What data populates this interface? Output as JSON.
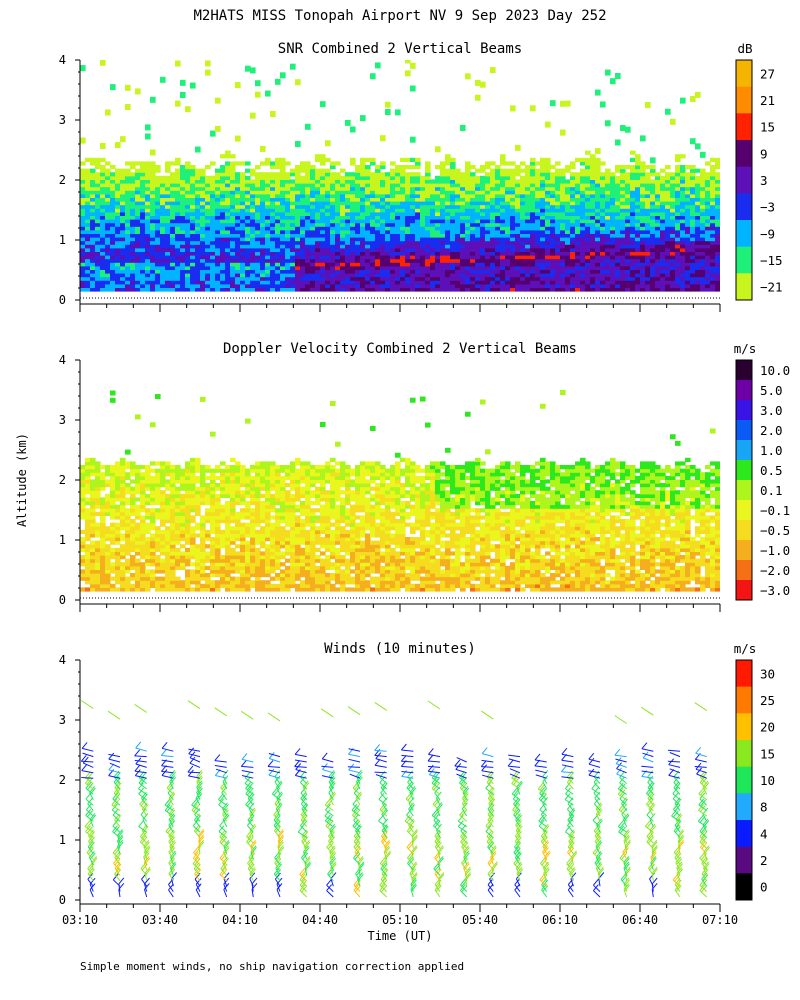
{
  "figure": {
    "title": "M2HATS MISS Tonopah Airport NV   9 Sep 2023 Day 252",
    "ylabel": "Altitude (km)",
    "xlabel": "Time (UT)",
    "footnote": "Simple moment winds, no ship navigation correction applied",
    "time_ticks": [
      "03:10",
      "03:40",
      "04:10",
      "04:40",
      "05:10",
      "05:40",
      "06:10",
      "06:40",
      "07:10"
    ]
  },
  "chart_data": [
    {
      "type": "heatmap",
      "id": "snr",
      "title": "SNR Combined 2 Vertical Beams",
      "xlabel": "Time (UT)",
      "ylabel": "Altitude (km)",
      "xlim_hours": [
        3.1667,
        7.1667
      ],
      "ylim": [
        0,
        4
      ],
      "yticks": [
        0,
        1,
        2,
        3,
        4
      ],
      "colorbar": {
        "unit": "dB",
        "labels": [
          "27",
          "21",
          "15",
          "9",
          "3",
          "−3",
          "−9",
          "−15",
          "−21"
        ],
        "colors": [
          "#f5b400",
          "#ff8c00",
          "#ff2200",
          "#55006e",
          "#5d0fb8",
          "#1a2cf0",
          "#00b4ff",
          "#1ef07a",
          "#c8f51e"
        ]
      },
      "features": {
        "signal_top_km": 2.3,
        "signal_bottom_km": 0.15,
        "strong_layer_start_km": 0.5,
        "strong_layer_end_km": 0.8,
        "strong_layer_onset": "04:40"
      }
    },
    {
      "type": "heatmap",
      "id": "doppler",
      "title": "Doppler Velocity Combined 2 Vertical Beams",
      "xlabel": "Time (UT)",
      "ylabel": "Altitude (km)",
      "xlim_hours": [
        3.1667,
        7.1667
      ],
      "ylim": [
        0,
        4
      ],
      "yticks": [
        0,
        1,
        2,
        3,
        4
      ],
      "colorbar": {
        "unit": "m/s",
        "labels": [
          "10.0",
          "5.0",
          "3.0",
          "2.0",
          "1.0",
          "0.5",
          "0.1",
          "−0.1",
          "−0.5",
          "−1.0",
          "−2.0",
          "−3.0"
        ],
        "colors": [
          "#2a0030",
          "#6e00a8",
          "#3a14e6",
          "#0a5af5",
          "#19a5f5",
          "#2ee81e",
          "#aef51e",
          "#ebf51e",
          "#f5dc1e",
          "#f5ae1e",
          "#f57014",
          "#f51414"
        ]
      },
      "features": {
        "signal_top_km": 2.25,
        "signal_bottom_km": 0.15,
        "dominant_range_m_s": [
          -1.0,
          -0.1
        ]
      }
    },
    {
      "type": "scatter",
      "id": "winds",
      "title": "Winds (10 minutes)",
      "xlabel": "Time (UT)",
      "ylabel": "Altitude (km)",
      "xlim_hours": [
        3.1667,
        7.1667
      ],
      "ylim": [
        0,
        4
      ],
      "yticks": [
        0,
        1,
        2,
        3,
        4
      ],
      "interval_minutes": 10,
      "colorbar": {
        "unit": "m/s",
        "labels": [
          "30",
          "25",
          "20",
          "15",
          "10",
          "8",
          "4",
          "2",
          "0"
        ],
        "colors": [
          "#ff1a00",
          "#ff7a00",
          "#ffc000",
          "#8ae81e",
          "#1ee85a",
          "#22aaff",
          "#0a1cff",
          "#5a0a80",
          "#000000"
        ]
      },
      "profiles_approx": {
        "low_km": [
          0,
          1.0,
          "green-yellow",
          15
        ],
        "mid_km": [
          1.0,
          2.0,
          "green-cyan",
          12
        ],
        "upper_km": [
          2.0,
          2.5,
          "blue-purple",
          5
        ]
      }
    }
  ]
}
